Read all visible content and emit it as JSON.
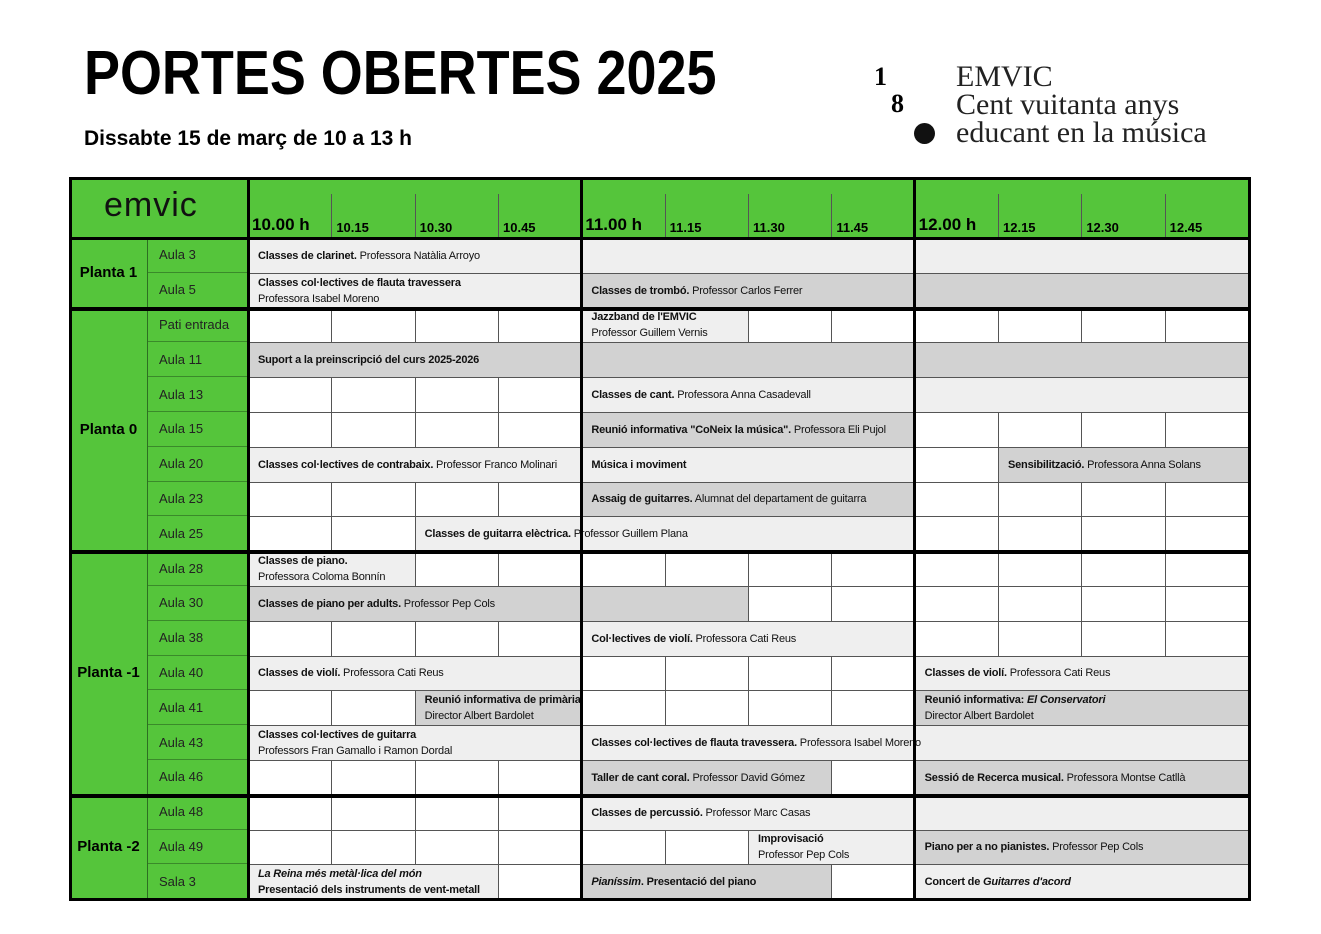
{
  "header": {
    "title": "PORTES OBERTES 2025",
    "subtitle": "Dissabte 15 de març de 10 a 13 h"
  },
  "logo": {
    "digits": [
      "1",
      "8"
    ],
    "lines": [
      "EMVIC",
      "Cent vuitanta anys",
      "educant en la música"
    ]
  },
  "table": {
    "brand": "emvic",
    "times": [
      "10.00 h",
      "10.15",
      "10.30",
      "10.45",
      "11.00 h",
      "11.15",
      "11.30",
      "11.45",
      "12.00 h",
      "12.15",
      "12.30",
      "12.45"
    ],
    "floors": [
      {
        "name": "Planta 1",
        "rooms": [
          {
            "room": "Aula 3",
            "events": [
              {
                "col": 0,
                "span": 12,
                "shade": "light",
                "lines": [
                  [
                    {
                      "text": "Classes de clarinet.",
                      "bold": true
                    },
                    {
                      "text": " Professora Natàlia Arroyo"
                    }
                  ]
                ]
              }
            ]
          },
          {
            "room": "Aula 5",
            "events": [
              {
                "col": 0,
                "span": 4,
                "shade": "light",
                "lines": [
                  [
                    {
                      "text": "Classes col·lectives de flauta travessera",
                      "bold": true
                    }
                  ],
                  [
                    {
                      "text": "Professora Isabel Moreno"
                    }
                  ]
                ]
              },
              {
                "col": 4,
                "span": 8,
                "shade": "dark",
                "lines": [
                  [
                    {
                      "text": "Classes de trombó.",
                      "bold": true
                    },
                    {
                      "text": " Professor Carlos Ferrer"
                    }
                  ]
                ]
              }
            ]
          }
        ]
      },
      {
        "name": "Planta 0",
        "rooms": [
          {
            "room": "Pati entrada",
            "events": [
              {
                "col": 4,
                "span": 2,
                "shade": "light",
                "lines": [
                  [
                    {
                      "text": "Jazzband de l'EMVIC",
                      "bold": true
                    }
                  ],
                  [
                    {
                      "text": "Professor Guillem Vernis"
                    }
                  ]
                ]
              }
            ]
          },
          {
            "room": "Aula 11",
            "events": [
              {
                "col": 0,
                "span": 12,
                "shade": "dark",
                "lines": [
                  [
                    {
                      "text": "Suport a la preinscripció del curs 2025-2026",
                      "bold": true
                    }
                  ]
                ]
              }
            ]
          },
          {
            "room": "Aula 13",
            "events": [
              {
                "col": 4,
                "span": 8,
                "shade": "light",
                "lines": [
                  [
                    {
                      "text": "Classes de cant.",
                      "bold": true
                    },
                    {
                      "text": " Professora Anna Casadevall"
                    }
                  ]
                ]
              }
            ]
          },
          {
            "room": "Aula 15",
            "events": [
              {
                "col": 4,
                "span": 4,
                "shade": "dark",
                "lines": [
                  [
                    {
                      "text": "Reunió informativa \"CoNeix la música\".",
                      "bold": true
                    },
                    {
                      "text": " Professora Eli Pujol"
                    }
                  ]
                ]
              }
            ]
          },
          {
            "room": "Aula 20",
            "events": [
              {
                "col": 0,
                "span": 4,
                "shade": "light",
                "lines": [
                  [
                    {
                      "text": "Classes col·lectives de contrabaix.",
                      "bold": true
                    },
                    {
                      "text": " Professor Franco Molinari"
                    }
                  ]
                ]
              },
              {
                "col": 4,
                "span": 4,
                "shade": "light",
                "lines": [
                  [
                    {
                      "text": "Música i moviment",
                      "bold": true
                    }
                  ]
                ]
              },
              {
                "col": 9,
                "span": 3,
                "shade": "dark",
                "lines": [
                  [
                    {
                      "text": "Sensibilització.",
                      "bold": true
                    },
                    {
                      "text": " Professora Anna Solans"
                    }
                  ]
                ]
              }
            ]
          },
          {
            "room": "Aula 23",
            "events": [
              {
                "col": 4,
                "span": 4,
                "shade": "dark",
                "lines": [
                  [
                    {
                      "text": "Assaig de guitarres.",
                      "bold": true
                    },
                    {
                      "text": " Alumnat del departament de guitarra"
                    }
                  ]
                ]
              }
            ]
          },
          {
            "room": "Aula 25",
            "events": [
              {
                "col": 2,
                "span": 6,
                "shade": "light",
                "lines": [
                  [
                    {
                      "text": "Classes de guitarra elèctrica.",
                      "bold": true
                    },
                    {
                      "text": " Professor Guillem Plana"
                    }
                  ]
                ]
              }
            ]
          }
        ]
      },
      {
        "name": "Planta -1",
        "rooms": [
          {
            "room": "Aula 28",
            "events": [
              {
                "col": 0,
                "span": 2,
                "shade": "light",
                "lines": [
                  [
                    {
                      "text": "Classes de piano.",
                      "bold": true
                    }
                  ],
                  [
                    {
                      "text": "Professora Coloma Bonnín"
                    }
                  ]
                ]
              }
            ]
          },
          {
            "room": "Aula 30",
            "events": [
              {
                "col": 0,
                "span": 6,
                "shade": "dark",
                "lines": [
                  [
                    {
                      "text": "Classes de piano per adults.",
                      "bold": true
                    },
                    {
                      "text": " Professor Pep Cols"
                    }
                  ]
                ]
              }
            ]
          },
          {
            "room": "Aula 38",
            "events": [
              {
                "col": 4,
                "span": 4,
                "shade": "light",
                "lines": [
                  [
                    {
                      "text": "Col·lectives de violí.",
                      "bold": true
                    },
                    {
                      "text": " Professora Cati Reus"
                    }
                  ]
                ]
              }
            ]
          },
          {
            "room": "Aula 40",
            "events": [
              {
                "col": 0,
                "span": 4,
                "shade": "light",
                "lines": [
                  [
                    {
                      "text": "Classes de violí.",
                      "bold": true
                    },
                    {
                      "text": " Professora Cati Reus"
                    }
                  ]
                ]
              },
              {
                "col": 8,
                "span": 4,
                "shade": "light",
                "lines": [
                  [
                    {
                      "text": "Classes de violí.",
                      "bold": true
                    },
                    {
                      "text": " Professora Cati Reus"
                    }
                  ]
                ]
              }
            ]
          },
          {
            "room": "Aula 41",
            "events": [
              {
                "col": 2,
                "span": 2,
                "shade": "dark",
                "lines": [
                  [
                    {
                      "text": "Reunió informativa de primària",
                      "bold": true
                    }
                  ],
                  [
                    {
                      "text": "Director Albert Bardolet"
                    }
                  ]
                ]
              },
              {
                "col": 8,
                "span": 4,
                "shade": "dark",
                "lines": [
                  [
                    {
                      "text": "Reunió informativa: ",
                      "bold": true
                    },
                    {
                      "text": "El Conservatori",
                      "bold": true,
                      "italic": true
                    }
                  ],
                  [
                    {
                      "text": "Director Albert Bardolet"
                    }
                  ]
                ]
              }
            ]
          },
          {
            "room": "Aula 43",
            "events": [
              {
                "col": 0,
                "span": 4,
                "shade": "light",
                "lines": [
                  [
                    {
                      "text": "Classes col·lectives de guitarra",
                      "bold": true
                    }
                  ],
                  [
                    {
                      "text": "Professors Fran Gamallo i Ramon Dordal"
                    }
                  ]
                ]
              },
              {
                "col": 4,
                "span": 8,
                "shade": "light",
                "lines": [
                  [
                    {
                      "text": "Classes col·lectives de flauta travessera.",
                      "bold": true
                    },
                    {
                      "text": " Professora Isabel Moreno"
                    }
                  ]
                ]
              }
            ]
          },
          {
            "room": "Aula 46",
            "events": [
              {
                "col": 4,
                "span": 3,
                "shade": "dark",
                "lines": [
                  [
                    {
                      "text": "Taller de cant coral.",
                      "bold": true
                    },
                    {
                      "text": " Professor David Gómez"
                    }
                  ]
                ]
              },
              {
                "col": 8,
                "span": 4,
                "shade": "dark",
                "lines": [
                  [
                    {
                      "text": "Sessió de Recerca musical.",
                      "bold": true
                    },
                    {
                      "text": " Professora Montse Catllà"
                    }
                  ]
                ]
              }
            ]
          }
        ]
      },
      {
        "name": "Planta -2",
        "rooms": [
          {
            "room": "Aula 48",
            "events": [
              {
                "col": 4,
                "span": 8,
                "shade": "light",
                "lines": [
                  [
                    {
                      "text": "Classes de percussió.",
                      "bold": true
                    },
                    {
                      "text": " Professor Marc Casas"
                    }
                  ]
                ]
              }
            ]
          },
          {
            "room": "Aula 49",
            "events": [
              {
                "col": 6,
                "span": 2,
                "shade": "light",
                "lines": [
                  [
                    {
                      "text": "Improvisació",
                      "bold": true
                    }
                  ],
                  [
                    {
                      "text": "Professor Pep Cols"
                    }
                  ]
                ]
              },
              {
                "col": 8,
                "span": 4,
                "shade": "dark",
                "lines": [
                  [
                    {
                      "text": "Piano per a no pianistes.",
                      "bold": true
                    },
                    {
                      "text": " Professor Pep Cols"
                    }
                  ]
                ]
              }
            ]
          },
          {
            "room": "Sala 3",
            "events": [
              {
                "col": 0,
                "span": 3,
                "shade": "light",
                "lines": [
                  [
                    {
                      "text": "La Reina més metàl·lica del món",
                      "bold": true,
                      "italic": true
                    }
                  ],
                  [
                    {
                      "text": "Presentació dels instruments de vent-metall",
                      "bold": true
                    }
                  ]
                ]
              },
              {
                "col": 4,
                "span": 3,
                "shade": "dark",
                "lines": [
                  [
                    {
                      "text": "Pianíssim",
                      "bold": true,
                      "italic": true
                    },
                    {
                      "text": ". Presentació del piano",
                      "bold": true
                    }
                  ]
                ]
              },
              {
                "col": 8,
                "span": 4,
                "shade": "light",
                "lines": [
                  [
                    {
                      "text": "Concert de ",
                      "bold": true
                    },
                    {
                      "text": "Guitarres d'acord",
                      "bold": true,
                      "italic": true
                    }
                  ]
                ]
              }
            ]
          }
        ]
      }
    ]
  }
}
